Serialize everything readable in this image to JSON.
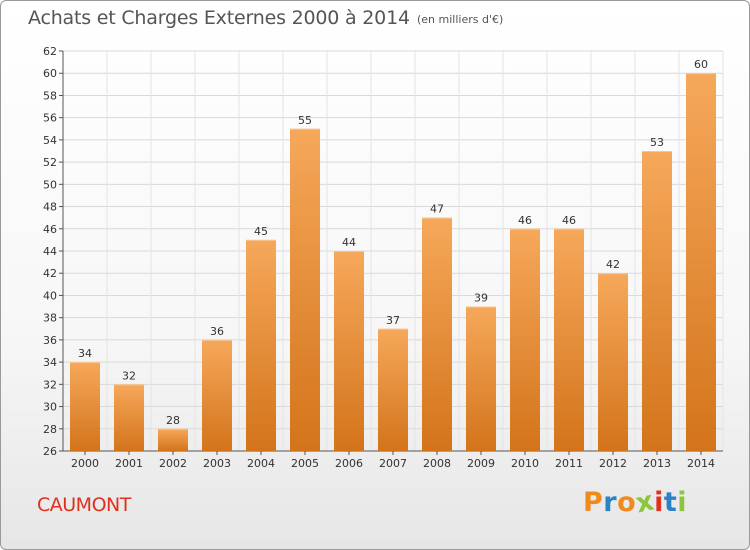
{
  "title": "Achats et Charges Externes 2000 à 2014",
  "subtitle": "(en milliers d'€)",
  "commune": "CAUMONT",
  "logo": {
    "letters": [
      "P",
      "r",
      "o",
      "x",
      "i",
      "t",
      "i"
    ],
    "colors": [
      "#f08a1c",
      "#2b83c6",
      "#f08a1c",
      "#8cc63f",
      "#e0301e",
      "#2b83c6",
      "#8cc63f"
    ]
  },
  "colors": {
    "bar_light": "#f6a85a",
    "bar_dark": "#d3741b",
    "title": "#555555",
    "commune": "#e0301e"
  },
  "chart_data": {
    "type": "bar",
    "title": "Achats et Charges Externes 2000 à 2014",
    "subtitle": "(en milliers d'€)",
    "xlabel": "",
    "ylabel": "",
    "categories": [
      "2000",
      "2001",
      "2002",
      "2003",
      "2004",
      "2005",
      "2006",
      "2007",
      "2008",
      "2009",
      "2010",
      "2011",
      "2012",
      "2013",
      "2014"
    ],
    "values": [
      34,
      32,
      28,
      36,
      45,
      55,
      44,
      37,
      47,
      39,
      46,
      46,
      42,
      53,
      60
    ],
    "ylim": [
      26,
      62
    ],
    "yticks": [
      26,
      28,
      30,
      32,
      34,
      36,
      38,
      40,
      42,
      44,
      46,
      48,
      50,
      52,
      54,
      56,
      58,
      60,
      62
    ],
    "grid": true,
    "data_labels": true
  }
}
